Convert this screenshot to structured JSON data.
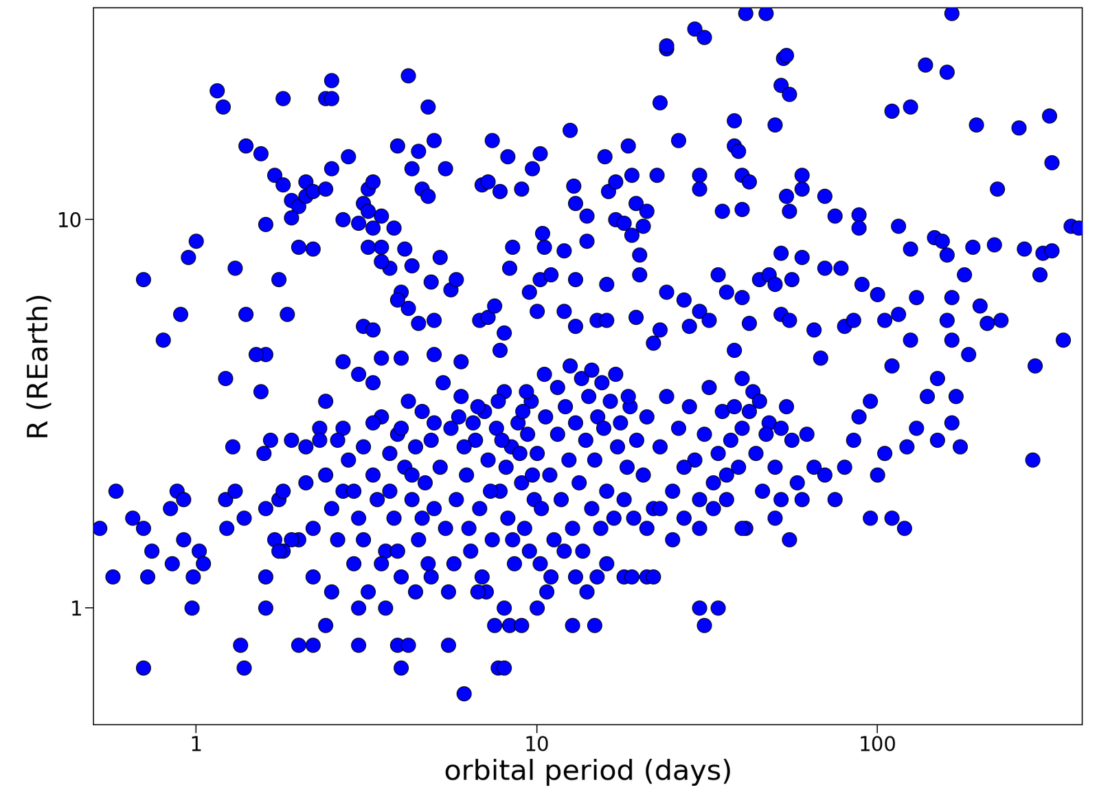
{
  "chart_data": {
    "type": "scatter",
    "x_label": "orbital period (days)",
    "y_label": "R (REarth)",
    "x": [
      1.15,
      1.2,
      1.8,
      2.4,
      2.5,
      2.5,
      4.2,
      4.8,
      1.4,
      1.55,
      1.7,
      1.8,
      1.9,
      2.0,
      2.1,
      2.1,
      2.2,
      2.4,
      1.9,
      2.7,
      2.8,
      2.5,
      3.1,
      3.2,
      3.3,
      3.5,
      3.8,
      3.9,
      4.3,
      4.5,
      4.6,
      4.8,
      5.0,
      5.4,
      6.9,
      7.2,
      7.4,
      7.8,
      8.2,
      9.0,
      9.7,
      10.2,
      12.5,
      12.8,
      13.0,
      14.0,
      15.8,
      16.2,
      17.0,
      18.5,
      19.0,
      19.5,
      21,
      22.5,
      23,
      24,
      24,
      26,
      30,
      30,
      29,
      31,
      35,
      38,
      38,
      39,
      40,
      42,
      40,
      41,
      47,
      50,
      52,
      53,
      54,
      55,
      54,
      55,
      60,
      60,
      70,
      75,
      88,
      88,
      110,
      125,
      138,
      160,
      165,
      195,
      225,
      260,
      320,
      325,
      370,
      390,
      115,
      125,
      147,
      155,
      160,
      190,
      220,
      270,
      305,
      325,
      300,
      350,
      290,
      285,
      1.3,
      1.0,
      0.95,
      0.7,
      0.8,
      0.9,
      1.4,
      1.6,
      1.75,
      1.85,
      1.6,
      2.2,
      2.0,
      3.0,
      3.2,
      3.3,
      3.5,
      3.7,
      3.2,
      3.5,
      4.1,
      4.3,
      4.0,
      4.2,
      3.9,
      4.5,
      5.0,
      4.9,
      5.2,
      5.6,
      5.8,
      6.8,
      7.2,
      7.5,
      8.3,
      8.5,
      9.5,
      10.2,
      10.5,
      10.4,
      11,
      12,
      13,
      14,
      16,
      17,
      18,
      19,
      20,
      20,
      20.5,
      19.5,
      15,
      16,
      13,
      12,
      10,
      8,
      7.8,
      6,
      5,
      4,
      3.5,
      3.1,
      3.3,
      3.0,
      3.3,
      2.7,
      2.4,
      2.3,
      2.7,
      22,
      23,
      24,
      27,
      28,
      30,
      32,
      34,
      36,
      38,
      40,
      42,
      45,
      48,
      50,
      52,
      55,
      56,
      52,
      60,
      65,
      68,
      70,
      78,
      80,
      85,
      90,
      100,
      105,
      110,
      115,
      125,
      130,
      140,
      150,
      160,
      165,
      170,
      200,
      185,
      210,
      230,
      180,
      165,
      2.0,
      2.1,
      2.2,
      2.3,
      2.4,
      2.5,
      2.6,
      2.7,
      2.8,
      2.9,
      3.0,
      3.1,
      3.2,
      3.3,
      3.4,
      3.5,
      3.6,
      3.7,
      3.8,
      3.9,
      4.0,
      4.1,
      4.2,
      4.3,
      4.4,
      4.5,
      4.6,
      4.7,
      4.8,
      4.9,
      5.0,
      2.2,
      2.6,
      2.9,
      3.1,
      3.3,
      3.5,
      3.7,
      4.0,
      4.3,
      4.6,
      5.0,
      2.5,
      3.0,
      3.6,
      3.9,
      4.4,
      4.9,
      2.2,
      2.4,
      3.0,
      3.9,
      4.2,
      4.0,
      2.0,
      1.9,
      1.8,
      5.2,
      5.4,
      5.6,
      5.8,
      6.0,
      6.2,
      6.4,
      6.6,
      6.8,
      7.0,
      7.2,
      7.4,
      7.6,
      7.8,
      8.0,
      8.2,
      8.4,
      8.6,
      8.8,
      9.0,
      9.2,
      9.4,
      9.6,
      9.8,
      5.3,
      5.7,
      6.1,
      6.5,
      6.9,
      7.3,
      7.7,
      8.1,
      8.5,
      8.9,
      9.3,
      9.7,
      5.5,
      6.3,
      7.1,
      7.5,
      8.0,
      8.3,
      7.7,
      8.0,
      6.1,
      5.5,
      6.7,
      9.0,
      9.5,
      5.9,
      6.7,
      7.9,
      9.1,
      10.0,
      10.3,
      10.6,
      10.9,
      11.2,
      11.5,
      11.8,
      12.1,
      12.4,
      12.7,
      13.0,
      13.3,
      13.6,
      13.9,
      14.2,
      14.5,
      14.8,
      15.1,
      15.4,
      15.7,
      16.0,
      16.4,
      16.8,
      17.2,
      17.6,
      18.0,
      18.4,
      18.8,
      19.2,
      19.6,
      10.5,
      11.5,
      12.5,
      13.5,
      14.5,
      15.5,
      17,
      18.5,
      10.2,
      11.0,
      12.0,
      13.0,
      14.0,
      15.0,
      16.0,
      18,
      19,
      10.7,
      12.7,
      14.8,
      10,
      20.5,
      21,
      22,
      23,
      24,
      25,
      26,
      27,
      28,
      29,
      30,
      31,
      32,
      33,
      34,
      35,
      36,
      37,
      38,
      39,
      40,
      41,
      42,
      44,
      46,
      48,
      50,
      52,
      54,
      56,
      58,
      21,
      23,
      25,
      27,
      30,
      33,
      36,
      40,
      43,
      45,
      47,
      50,
      52,
      55,
      60,
      30,
      34,
      31,
      21,
      22,
      40,
      62,
      65,
      70,
      75,
      80,
      85,
      88,
      95,
      100,
      105,
      110,
      120,
      122,
      130,
      150,
      165,
      175,
      95,
      0.52,
      0.57,
      0.58,
      0.65,
      0.7,
      0.72,
      0.74,
      0.7,
      0.84,
      0.85,
      0.88,
      0.92,
      0.92,
      0.97,
      0.98,
      1.02,
      1.05,
      1.22,
      1.23,
      1.28,
      1.3,
      1.22,
      1.35,
      1.38,
      1.38,
      1.55,
      1.58,
      1.6,
      1.6,
      1.65,
      1.6,
      1.7,
      1.75,
      1.8,
      1.9,
      2.1,
      1.5,
      1.75
    ],
    "values": [
      21.5,
      19.5,
      20.5,
      20.5,
      22.8,
      20.5,
      23.5,
      19.5,
      15.5,
      14.8,
      13,
      12.3,
      11.2,
      10.8,
      11.5,
      12.5,
      11.8,
      12,
      10.1,
      10,
      14.5,
      13.5,
      11,
      12,
      12.5,
      10.2,
      9.5,
      15.5,
      13.5,
      15,
      12,
      11.5,
      16,
      13.5,
      12.3,
      12.5,
      16,
      11.8,
      14.5,
      12,
      13.5,
      14.8,
      17,
      12.2,
      11,
      10.2,
      14.5,
      11.8,
      12.5,
      15.5,
      13,
      11,
      10.5,
      13,
      20,
      27.5,
      28,
      16,
      13,
      12,
      31,
      29.5,
      10.5,
      18,
      15.5,
      15,
      13,
      12.5,
      10.6,
      34,
      34,
      17.5,
      22.2,
      26,
      26.5,
      21,
      11.5,
      10.5,
      13,
      12,
      11.5,
      10.2,
      10.3,
      9.5,
      19,
      19.5,
      25,
      24,
      34,
      17.5,
      12,
      17.2,
      18.5,
      14,
      9.6,
      9.5,
      9.6,
      8.4,
      9,
      8.8,
      8.1,
      8.5,
      8.6,
      8.4,
      8.2,
      8.3,
      7.2,
      4.9,
      4.2,
      2.4,
      7.5,
      8.8,
      8,
      7,
      4.9,
      5.7,
      5.7,
      4.5,
      7,
      5.7,
      9.7,
      8.4,
      8.5,
      9.8,
      10.5,
      9.5,
      8.5,
      7.5,
      8.5,
      7.8,
      8.4,
      7.6,
      6.5,
      5.9,
      6.2,
      5.4,
      5.5,
      6.9,
      8,
      6.6,
      7,
      5.5,
      5.6,
      6,
      7.5,
      8.5,
      6.5,
      7,
      8.5,
      9.2,
      7.2,
      8.3,
      7,
      8.8,
      6.8,
      10,
      9.8,
      9.1,
      8.1,
      7.2,
      9.6,
      5.6,
      5.5,
      5.5,
      5.3,
      5.8,
      5.8,
      5.1,
      4.6,
      4.3,
      4.5,
      4.4,
      4.4,
      5.3,
      5.2,
      4,
      3.8,
      4.3,
      3.4,
      2.9,
      2.9,
      4.8,
      5.2,
      6.5,
      6.2,
      5.3,
      5.8,
      5.5,
      7.2,
      6.5,
      4.6,
      6.3,
      5.4,
      7,
      7.2,
      6.8,
      5.7,
      5.5,
      7,
      8.2,
      8,
      5.2,
      4.4,
      7.5,
      7.5,
      5.3,
      5.5,
      6.8,
      6.4,
      5.5,
      4.2,
      5.7,
      4.9,
      6.3,
      3.5,
      3.9,
      5.5,
      4.9,
      3.5,
      6,
      4.5,
      5.4,
      5.5,
      7.2,
      6.3,
      1.5,
      2.1,
      1.6,
      2.7,
      2.2,
      1.8,
      1.5,
      2.0,
      2.4,
      1.3,
      1.7,
      2.6,
      1.1,
      2.2,
      1.9,
      3.1,
      1.4,
      2.5,
      1.7,
      2.8,
      1.2,
      2.3,
      3.4,
      1.9,
      2.6,
      1.5,
      3.2,
      2.1,
      1.3,
      2.7,
      1.8,
      1.2,
      2.7,
      2.0,
      1.5,
      3.0,
      1.3,
      2.0,
      2.9,
      2.2,
      1.7,
      3.0,
      1.1,
      1.0,
      1.0,
      1.4,
      1.1,
      1.2,
      0.8,
      0.9,
      0.8,
      0.8,
      0.8,
      0.7,
      0.8,
      1.5,
      1.4,
      2.3,
      1.6,
      2.9,
      1.9,
      3.5,
      2.2,
      1.4,
      2.7,
      1.8,
      3.2,
      2.4,
      1.5,
      2.9,
      2.0,
      3.6,
      1.7,
      2.6,
      1.3,
      3.0,
      2.1,
      1.6,
      2.8,
      3.4,
      1.9,
      3.8,
      1.3,
      2.6,
      3.0,
      1.2,
      2.0,
      3.4,
      2.3,
      1.5,
      2.5,
      3.6,
      2.2,
      1.1,
      1.6,
      1.1,
      0.9,
      1.0,
      0.9,
      0.7,
      0.7,
      0.6,
      0.8,
      1.1,
      0.9,
      1.4,
      3.1,
      3.3,
      2.7,
      3.2,
      2.5,
      1.8,
      3.1,
      2.2,
      1.5,
      2.8,
      1.9,
      3.3,
      2.4,
      1.6,
      3.0,
      2.1,
      1.4,
      2.7,
      3.5,
      1.8,
      2.4,
      3.1,
      1.6,
      2.9,
      2.0,
      3.4,
      1.7,
      2.6,
      3.0,
      1.9,
      2.3,
      3.3,
      1.7,
      2.7,
      4.0,
      3.7,
      4.2,
      3.9,
      4.1,
      3.8,
      4.0,
      3.5,
      1.3,
      1.2,
      1.4,
      1.2,
      1.1,
      1.2,
      1.3,
      1.2,
      1.2,
      1.1,
      0.9,
      0.9,
      1.0,
      2.2,
      3.1,
      1.8,
      2.6,
      3.5,
      2.0,
      2.9,
      1.7,
      3.3,
      2.4,
      1.9,
      2.8,
      3.7,
      2.1,
      2.5,
      3.2,
      1.9,
      2.7,
      3.3,
      2.3,
      2.9,
      1.6,
      3.2,
      2.5,
      2.0,
      3.0,
      2.3,
      1.9,
      3.3,
      2.7,
      2.1,
      1.6,
      1.8,
      1.5,
      2.3,
      1.6,
      1.8,
      2.2,
      3.9,
      3.6,
      3.4,
      2.8,
      1.7,
      2.9,
      1.5,
      1.9,
      1.0,
      1.0,
      0.9,
      1.2,
      1.2,
      1.6,
      2.8,
      2.3,
      2.2,
      1.9,
      2.3,
      2.7,
      3.1,
      1.7,
      2.2,
      2.5,
      1.7,
      1.6,
      2.6,
      2.9,
      2.7,
      3.0,
      2.6,
      3.4,
      1.6,
      1.2,
      2.0,
      1.7,
      1.6,
      1.2,
      1.4,
      0.7,
      1.8,
      1.3,
      2.0,
      1.5,
      1.9,
      1.0,
      1.2,
      1.4,
      1.3,
      1.9,
      1.6,
      2.6,
      2.0,
      3.9,
      0.8,
      0.7,
      1.7,
      3.6,
      2.5,
      1.2,
      1.0,
      2.7,
      1.8,
      1.5,
      1.9,
      2.0,
      2.7,
      2.6,
      4.5,
      1.4
    ],
    "color": "#0000ff",
    "marker": "circle",
    "log": true,
    "grid": false,
    "xlim": [
      0.5,
      400
    ],
    "ylim": [
      0.5,
      35
    ],
    "xticks": [
      1,
      10,
      100
    ],
    "yticks": [
      1,
      10
    ]
  }
}
